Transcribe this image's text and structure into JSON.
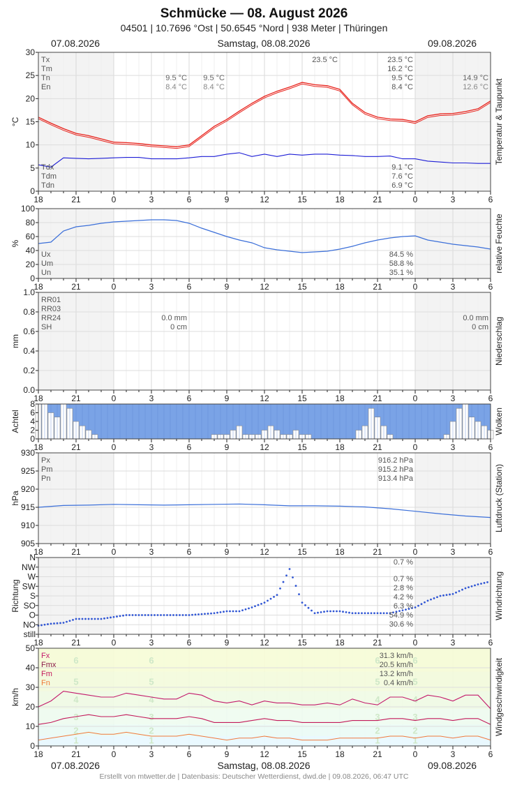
{
  "header": {
    "title": "Schmücke  —  08. August 2026",
    "subtitle": "04501  |  10.7696 °Ost  |  50.6545 °Nord  |  938 Meter  |  Thüringen",
    "date_left": "07.08.2026",
    "date_center": "Samstag, 08.08.2026",
    "date_right": "09.08.2026"
  },
  "footer": {
    "date_left": "07.08.2026",
    "date_center": "Samstag, 08.08.2026",
    "date_right": "09.08.2026",
    "credit": "Erstellt von mtwetter.de | Datenbasis: Deutscher Wetterdienst, dwd.de | 09.08.2026, 06:47 UTC"
  },
  "colors": {
    "night_shade": "#f3f3f3",
    "grid": "#dddddd",
    "temperature": "#e8231c",
    "dewpoint": "#1d1dd6",
    "humidity": "#3b6fd9",
    "cloud_fill": "#7aa3e6",
    "pressure": "#3b6fd9",
    "wind_dir": "#2f55d4",
    "wind_max": "#c3196b",
    "wind_mean": "#c3195a",
    "wind_min": "#f07a3a"
  },
  "chart_data": [
    {
      "id": "temp",
      "type": "line",
      "ylabel": "°C",
      "side_label": "Temperatur & Taupunkt",
      "ylim": [
        0,
        30
      ],
      "yticks": [
        "0",
        "5",
        "10",
        "15",
        "20",
        "25",
        "30"
      ],
      "xticks": [
        "18",
        "21",
        "0",
        "3",
        "6",
        "9",
        "12",
        "15",
        "18",
        "21",
        "0",
        "3",
        "6"
      ],
      "x_range_hours": [
        18,
        54
      ],
      "series": [
        {
          "name": "T",
          "color": "temperature",
          "x": [
            18,
            19,
            20,
            21,
            22,
            23,
            24,
            25,
            26,
            27,
            28,
            29,
            30,
            31,
            32,
            33,
            34,
            35,
            36,
            37,
            38,
            39,
            40,
            41,
            42,
            43,
            44,
            45,
            46,
            47,
            48,
            49,
            50,
            51,
            52,
            53,
            54
          ],
          "values": [
            16.0,
            14.7,
            13.5,
            12.5,
            12.0,
            11.3,
            10.6,
            10.5,
            10.3,
            10.0,
            9.8,
            9.6,
            10.0,
            12.0,
            14.0,
            15.5,
            17.3,
            19.0,
            20.5,
            21.6,
            22.5,
            23.5,
            23.0,
            22.8,
            22.0,
            19.0,
            17.0,
            16.0,
            15.6,
            15.5,
            15.0,
            16.3,
            16.7,
            16.8,
            17.2,
            17.8,
            19.5
          ]
        },
        {
          "name": "Td",
          "color": "dewpoint",
          "x": [
            18,
            19,
            20,
            21,
            22,
            23,
            24,
            25,
            26,
            27,
            28,
            29,
            30,
            31,
            32,
            33,
            34,
            35,
            36,
            37,
            38,
            39,
            40,
            41,
            42,
            43,
            44,
            45,
            46,
            47,
            48,
            49,
            50,
            51,
            52,
            53,
            54
          ],
          "values": [
            5.7,
            5.2,
            7.2,
            7.1,
            7.0,
            7.1,
            7.2,
            7.3,
            7.3,
            7.0,
            7.0,
            7.0,
            7.2,
            7.5,
            7.5,
            8.0,
            8.3,
            7.5,
            8.0,
            7.5,
            8.0,
            7.8,
            8.0,
            8.0,
            7.8,
            7.7,
            7.5,
            7.5,
            7.6,
            7.0,
            7.0,
            6.5,
            6.3,
            6.1,
            6.1,
            6.0,
            6.0
          ]
        }
      ],
      "labels_left": [
        "Tx",
        "Tm",
        "Tn",
        "En"
      ],
      "labels_dew": [
        "Tdx",
        "Tdm",
        "Tdn"
      ],
      "annotations": {
        "night1": [
          "9.5 °C",
          "8.4 °C"
        ],
        "day1": [
          "9.5 °C",
          "8.4 °C"
        ],
        "max_day": "23.5 °C",
        "stats": [
          "23.5 °C",
          "16.2 °C",
          "9.5 °C",
          "8.4 °C"
        ],
        "right": [
          "14.9 °C",
          "12.6 °C"
        ],
        "dew_stats": [
          "9.1 °C",
          "7.6 °C",
          "6.9 °C"
        ]
      }
    },
    {
      "id": "hum",
      "type": "line",
      "ylabel": "%",
      "side_label": "relative Feuchte",
      "ylim": [
        0,
        100
      ],
      "yticks": [
        "0",
        "20",
        "40",
        "60",
        "80",
        "100"
      ],
      "xticks": [
        "18",
        "21",
        "0",
        "3",
        "6",
        "9",
        "12",
        "15",
        "18",
        "21",
        "0",
        "3",
        "6"
      ],
      "series": [
        {
          "name": "U",
          "color": "humidity",
          "x": [
            18,
            19,
            20,
            21,
            22,
            23,
            24,
            25,
            26,
            27,
            28,
            29,
            30,
            31,
            32,
            33,
            34,
            35,
            36,
            37,
            38,
            39,
            40,
            41,
            42,
            43,
            44,
            45,
            46,
            47,
            48,
            49,
            50,
            51,
            52,
            53,
            54
          ],
          "values": [
            50,
            52,
            68,
            74,
            76,
            79,
            81,
            82,
            83,
            84,
            84,
            83,
            79,
            72,
            66,
            60,
            55,
            51,
            44,
            41,
            39,
            37,
            38,
            39,
            42,
            46,
            51,
            55,
            58,
            60,
            61,
            55,
            52,
            49,
            47,
            45,
            42
          ]
        }
      ],
      "labels_left": [
        "Ux",
        "Um",
        "Un"
      ],
      "stats": [
        "84.5 %",
        "58.8 %",
        "35.1 %"
      ]
    },
    {
      "id": "rain",
      "type": "bar",
      "ylabel": "mm",
      "side_label": "Niederschlag",
      "ylim": [
        0,
        1
      ],
      "yticks": [
        "0.0",
        "0.2",
        "0.4",
        "0.6",
        "0.8",
        "1.0"
      ],
      "xticks": [
        "18",
        "21",
        "0",
        "3",
        "6",
        "9",
        "12",
        "15",
        "18",
        "21",
        "0",
        "3",
        "6"
      ],
      "labels_left": [
        "RR01",
        "RR03",
        "RR24",
        "SH"
      ],
      "mid": [
        "0.0 mm",
        "0 cm"
      ],
      "right": [
        "0.0 mm",
        "0 cm"
      ]
    },
    {
      "id": "cloud",
      "type": "bar",
      "ylabel": "Achtel",
      "side_label": "Wolken",
      "ylim": [
        0,
        8
      ],
      "yticks": [
        "0",
        "2",
        "4",
        "6",
        "8"
      ],
      "xticks": [
        "18",
        "21",
        "0",
        "3",
        "6",
        "9",
        "12",
        "15",
        "18",
        "21",
        "0",
        "3",
        "6"
      ],
      "clear_x": [
        18.0,
        18.5,
        19.0,
        19.5,
        20.0,
        20.5,
        21.0,
        21.5,
        22.0,
        22.5,
        32.0,
        32.5,
        33.0,
        33.5,
        34.0,
        34.5,
        35.0,
        35.5,
        36.0,
        36.5,
        37.0,
        37.5,
        38.0,
        38.5,
        39.0,
        39.5,
        43.5,
        44.0,
        44.5,
        45.0,
        45.5,
        46.0,
        50.5,
        51.0,
        51.5,
        52.0,
        52.5,
        53.0,
        53.5,
        54.0
      ],
      "clear_octas": [
        8,
        8,
        6,
        5,
        8,
        7,
        4,
        3,
        2,
        1,
        1,
        1,
        1,
        2,
        3,
        1,
        1,
        1,
        2,
        3,
        2,
        1,
        1,
        2,
        1,
        1,
        2,
        3,
        7,
        5,
        3,
        1,
        1,
        4,
        7,
        8,
        5,
        4,
        3,
        2
      ]
    },
    {
      "id": "press",
      "type": "line",
      "ylabel": "hPa",
      "side_label": "Luftdruck (Station)",
      "ylim": [
        905,
        930
      ],
      "yticks": [
        "905",
        "910",
        "915",
        "920",
        "925",
        "930"
      ],
      "xticks": [
        "18",
        "21",
        "0",
        "3",
        "6",
        "9",
        "12",
        "15",
        "18",
        "21",
        "0",
        "3",
        "6"
      ],
      "series": [
        {
          "name": "P",
          "color": "pressure",
          "x": [
            18,
            20,
            22,
            24,
            26,
            28,
            30,
            32,
            34,
            36,
            38,
            40,
            42,
            44,
            46,
            48,
            50,
            52,
            54
          ],
          "values": [
            915.0,
            915.5,
            915.6,
            915.8,
            915.7,
            915.6,
            915.7,
            915.8,
            915.9,
            915.7,
            915.4,
            915.4,
            915.3,
            915.1,
            914.6,
            913.9,
            913.2,
            912.6,
            912.2
          ]
        }
      ],
      "labels_left": [
        "Px",
        "Pm",
        "Pn"
      ],
      "stats": [
        "916.2 hPa",
        "915.2 hPa",
        "913.4 hPa"
      ]
    },
    {
      "id": "wdir",
      "type": "scatter",
      "ylabel": "Richtung",
      "side_label": "Windrichtung",
      "ylim": [
        0,
        8
      ],
      "ylabels": [
        "still",
        "NO",
        "O",
        "SO",
        "S",
        "SW",
        "W",
        "NW",
        "N"
      ],
      "xticks": [
        "18",
        "21",
        "0",
        "3",
        "6",
        "9",
        "12",
        "15",
        "18",
        "21",
        "0",
        "3",
        "6"
      ],
      "x": [
        18,
        19,
        20,
        21,
        22,
        23,
        24,
        25,
        26,
        27,
        28,
        29,
        30,
        31,
        32,
        33,
        34,
        35,
        36,
        37,
        38,
        39,
        40,
        41,
        42,
        43,
        44,
        45,
        46,
        47,
        48,
        49,
        50,
        51,
        52,
        53,
        54
      ],
      "values": [
        0.9,
        1.1,
        1.2,
        1.6,
        1.6,
        1.6,
        1.8,
        2.0,
        2.0,
        2.0,
        2.0,
        2.0,
        2.0,
        2.1,
        2.2,
        2.4,
        2.4,
        2.8,
        3.3,
        4.1,
        6.8,
        3.3,
        2.2,
        2.4,
        2.4,
        2.2,
        2.2,
        2.2,
        2.2,
        2.5,
        2.8,
        3.5,
        4.0,
        4.2,
        4.8,
        5.2,
        5.5
      ],
      "labels_left": [],
      "stats": [
        "0.7 %",
        "0.7 %",
        "2.8 %",
        "4.2 %",
        "6.3 %",
        "54.9 %",
        "30.6 %"
      ]
    },
    {
      "id": "wind",
      "type": "line",
      "ylabel": "km/h",
      "side_label": "Windgeschwindigkeit",
      "ylim": [
        0,
        50
      ],
      "yticks": [
        "0",
        "10",
        "20",
        "30",
        "40",
        "50"
      ],
      "xticks": [
        "18",
        "21",
        "0",
        "3",
        "6",
        "9",
        "12",
        "15",
        "18",
        "21",
        "0",
        "3",
        "6"
      ],
      "bft_labels": [
        "1",
        "2",
        "3",
        "4",
        "5",
        "6"
      ],
      "series": [
        {
          "name": "Fx",
          "color": "wind_max",
          "x": [
            18,
            19,
            20,
            21,
            22,
            23,
            24,
            25,
            26,
            27,
            28,
            29,
            30,
            31,
            32,
            33,
            34,
            35,
            36,
            37,
            38,
            39,
            40,
            41,
            42,
            43,
            44,
            45,
            46,
            47,
            48,
            49,
            50,
            51,
            52,
            53,
            54
          ],
          "values": [
            20,
            23,
            28,
            27,
            26,
            25,
            25,
            27,
            26,
            25,
            24,
            24,
            27,
            26,
            23,
            22,
            23,
            21,
            23,
            22,
            22,
            21,
            21,
            22,
            21,
            24,
            22,
            21,
            25,
            25,
            23,
            26,
            25,
            23,
            26,
            26,
            19
          ]
        },
        {
          "name": "Fm",
          "color": "wind_mean",
          "x": [
            18,
            19,
            20,
            21,
            22,
            23,
            24,
            25,
            26,
            27,
            28,
            29,
            30,
            31,
            32,
            33,
            34,
            35,
            36,
            37,
            38,
            39,
            40,
            41,
            42,
            43,
            44,
            45,
            46,
            47,
            48,
            49,
            50,
            51,
            52,
            53,
            54
          ],
          "values": [
            11,
            12,
            14,
            15,
            16,
            15,
            15,
            16,
            15,
            14,
            14,
            14,
            15,
            14,
            12,
            12,
            12,
            13,
            14,
            13,
            13,
            12,
            12,
            12,
            12,
            13,
            13,
            13,
            14,
            14,
            13,
            14,
            14,
            13,
            14,
            14,
            11
          ]
        },
        {
          "name": "Fn",
          "color": "wind_min",
          "x": [
            18,
            19,
            20,
            21,
            22,
            23,
            24,
            25,
            26,
            27,
            28,
            29,
            30,
            31,
            32,
            33,
            34,
            35,
            36,
            37,
            38,
            39,
            40,
            41,
            42,
            43,
            44,
            45,
            46,
            47,
            48,
            49,
            50,
            51,
            52,
            53,
            54
          ],
          "values": [
            3,
            4,
            5,
            6,
            7,
            6,
            6,
            7,
            6,
            5,
            5,
            5,
            6,
            5,
            4,
            3,
            4,
            4,
            5,
            4,
            4,
            3,
            3,
            3,
            4,
            4,
            4,
            4,
            5,
            5,
            4,
            5,
            5,
            4,
            5,
            5,
            3
          ]
        }
      ],
      "labels_left": [
        "Fx",
        "Fmx",
        "Fm",
        "Fn"
      ],
      "stats": [
        "31.3 km/h",
        "20.5 km/h",
        "13.2 km/h",
        "0.4 km/h"
      ]
    }
  ]
}
